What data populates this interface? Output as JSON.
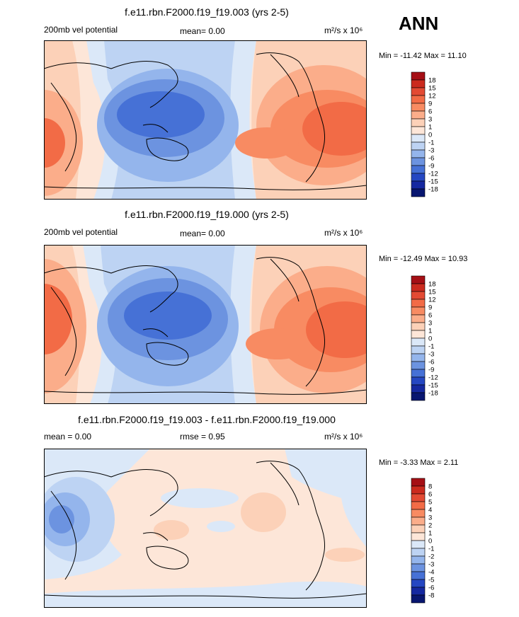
{
  "season": "ANN",
  "panels": [
    {
      "title": "f.e11.rbn.F2000.f19_f19.003 (yrs 2-5)",
      "left_label": "200mb vel potential",
      "center_label": "mean=   0.00",
      "units": "m²/s x 10⁶",
      "minmax": "Min = -11.42 Max =  11.10",
      "colorbar": {
        "labels": [
          "18",
          "15",
          "12",
          "9",
          "6",
          "3",
          "1",
          "0",
          "-1",
          "-3",
          "-6",
          "-9",
          "-12",
          "-15",
          "-18"
        ],
        "colors": [
          "#a50f15",
          "#cb2a1e",
          "#e34a33",
          "#f26b46",
          "#f88b62",
          "#fbad8a",
          "#fcd1b8",
          "#fde6d8",
          "#dbe8f8",
          "#bdd3f3",
          "#94b5ec",
          "#6c93e0",
          "#4671d6",
          "#2547c2",
          "#1528a0",
          "#081670"
        ]
      }
    },
    {
      "title": "f.e11.rbn.F2000.f19_f19.000 (yrs 2-5)",
      "left_label": "200mb vel potential",
      "center_label": "mean=   0.00",
      "units": "m²/s x 10⁶",
      "minmax": "Min = -12.49 Max =  10.93",
      "colorbar": {
        "labels": [
          "18",
          "15",
          "12",
          "9",
          "6",
          "3",
          "1",
          "0",
          "-1",
          "-3",
          "-6",
          "-9",
          "-12",
          "-15",
          "-18"
        ],
        "colors": [
          "#a50f15",
          "#cb2a1e",
          "#e34a33",
          "#f26b46",
          "#f88b62",
          "#fbad8a",
          "#fcd1b8",
          "#fde6d8",
          "#dbe8f8",
          "#bdd3f3",
          "#94b5ec",
          "#6c93e0",
          "#4671d6",
          "#2547c2",
          "#1528a0",
          "#081670"
        ]
      }
    },
    {
      "title": "f.e11.rbn.F2000.f19_f19.003 - f.e11.rbn.F2000.f19_f19.000",
      "left_label": "mean =   0.00",
      "center_label": "rmse =   0.95",
      "units": "m²/s x 10⁶",
      "minmax": "Min =  -3.33 Max =   2.11",
      "colorbar": {
        "labels": [
          "8",
          "6",
          "5",
          "4",
          "3",
          "2",
          "1",
          "0",
          "-1",
          "-2",
          "-3",
          "-4",
          "-5",
          "-6",
          "-8"
        ],
        "colors": [
          "#a50f15",
          "#cb2a1e",
          "#e34a33",
          "#f26b46",
          "#f88b62",
          "#fbad8a",
          "#fcd1b8",
          "#fde6d8",
          "#dbe8f8",
          "#bdd3f3",
          "#94b5ec",
          "#6c93e0",
          "#4671d6",
          "#2547c2",
          "#1528a0",
          "#081670"
        ]
      }
    }
  ]
}
